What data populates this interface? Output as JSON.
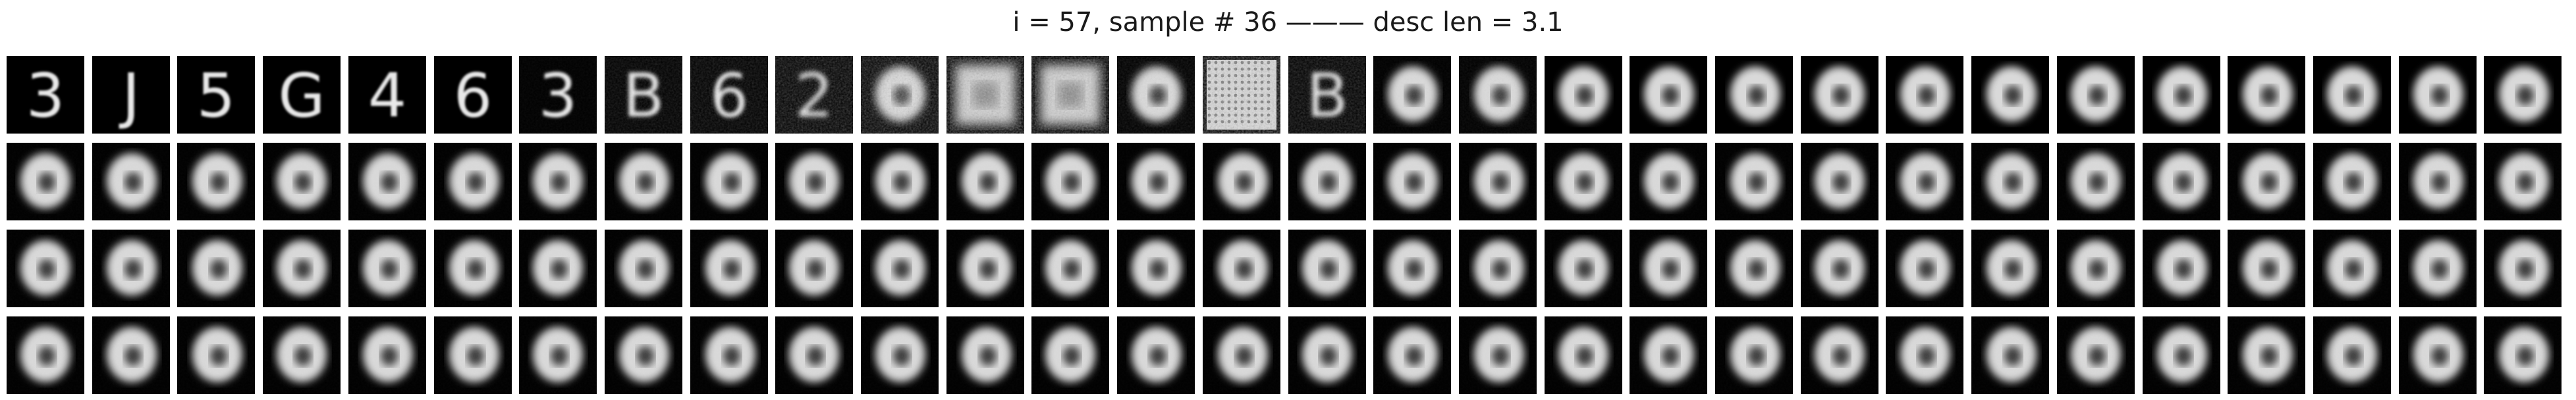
{
  "figure": {
    "title": "i = 57, sample # 36 ——— desc len = 3.1"
  },
  "grid": {
    "rows": 4,
    "cols": 30,
    "background": "#000000",
    "first_row_tiles": [
      {
        "kind": "digit",
        "glyph": "3",
        "noise": 0.0
      },
      {
        "kind": "digit",
        "glyph": "J",
        "noise": 0.0
      },
      {
        "kind": "digit",
        "glyph": "5",
        "noise": 0.0
      },
      {
        "kind": "digit",
        "glyph": "G",
        "noise": 0.0
      },
      {
        "kind": "digit",
        "glyph": "4",
        "noise": 0.0
      },
      {
        "kind": "digit",
        "glyph": "6",
        "noise": 0.0
      },
      {
        "kind": "digit",
        "glyph": "3",
        "noise": 0.1
      },
      {
        "kind": "digit",
        "glyph": "B",
        "noise": 0.3
      },
      {
        "kind": "digit",
        "glyph": "6",
        "noise": 0.35
      },
      {
        "kind": "digit",
        "glyph": "2",
        "noise": 0.55
      },
      {
        "kind": "blob",
        "noise": 0.65
      },
      {
        "kind": "square",
        "noise": 0.8
      },
      {
        "kind": "square",
        "noise": 0.75
      },
      {
        "kind": "blob",
        "noise": 0.25
      },
      {
        "kind": "checker",
        "noise": 0.9
      },
      {
        "kind": "digit",
        "glyph": "B",
        "noise": 0.45
      },
      {
        "kind": "ring",
        "noise": 0.1
      },
      {
        "kind": "ring",
        "noise": 0.15
      },
      {
        "kind": "ring",
        "noise": 0.0
      },
      {
        "kind": "ring",
        "noise": 0.0
      },
      {
        "kind": "ring",
        "noise": 0.0
      },
      {
        "kind": "ring",
        "noise": 0.0
      },
      {
        "kind": "ring",
        "noise": 0.0
      },
      {
        "kind": "ring",
        "noise": 0.0
      },
      {
        "kind": "ring",
        "noise": 0.0
      },
      {
        "kind": "ring",
        "noise": 0.0
      },
      {
        "kind": "ring",
        "noise": 0.0
      },
      {
        "kind": "ring",
        "noise": 0.0
      },
      {
        "kind": "ring",
        "noise": 0.0
      },
      {
        "kind": "ring",
        "noise": 0.0
      }
    ],
    "other_rows_kind": "ring"
  }
}
